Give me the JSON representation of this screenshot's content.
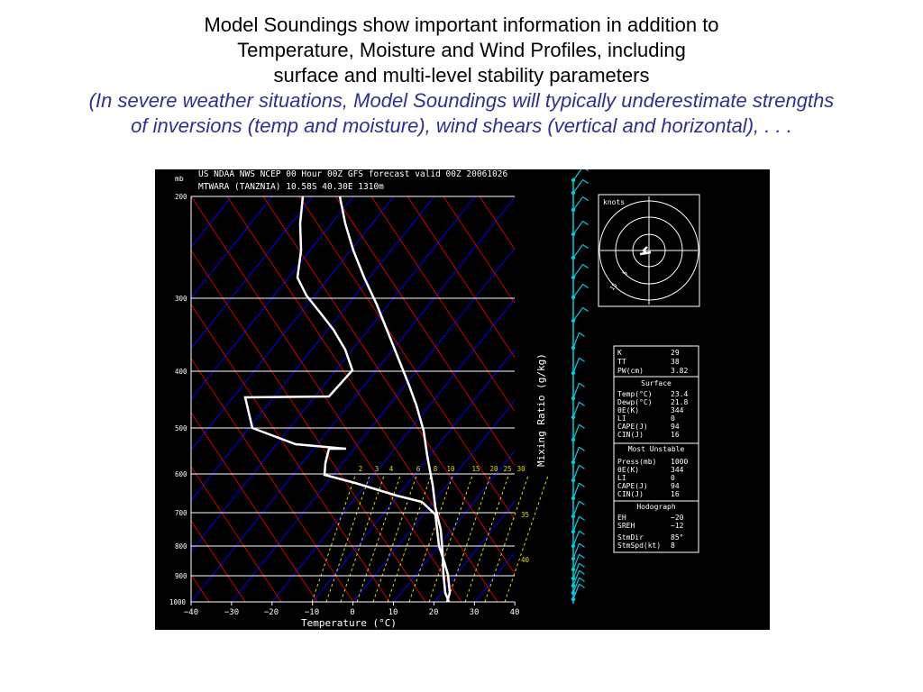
{
  "slide": {
    "title_lines": [
      "Model Soundings show important information in addition to",
      "Temperature, Moisture and Wind Profiles, including",
      "surface and multi-level stability parameters"
    ],
    "note_lines": [
      "(In severe weather situations, Model Soundings will typically underestimate strengths",
      "of inversions (temp and moisture), wind shears (vertical and horizontal), . . ."
    ]
  },
  "sounding": {
    "header_line1": "US NDAA NWS NCEP 00 Hour 00Z GFS forecast valid 00Z 20061026",
    "header_line2": "MTWARA (TANZNIA) 10.58S 40.30E 1310m",
    "pressure_unit": "mb",
    "pressure_ticks": [
      "200",
      "300",
      "400",
      "500",
      "600",
      "700",
      "800",
      "900",
      "1000"
    ],
    "temp_ticks": [
      "−40",
      "−30",
      "−20",
      "−10",
      "0",
      "10",
      "20",
      "30",
      "40"
    ],
    "x_axis_label": "Temperature (°C)",
    "mixing_ratio_label": "Mixing Ratio (g/kg)",
    "mixing_ratio_values": [
      "2",
      "3",
      "4",
      "6",
      "8",
      "10",
      "15",
      "20",
      "25",
      "30"
    ],
    "theta_labels": [
      "35",
      "40"
    ],
    "hodograph_unit": "knots",
    "hodograph_marks": [
      "5",
      "15"
    ],
    "colors": {
      "background": "#000000",
      "isobar": "#ffffff",
      "isotherm": "#0000ff",
      "dry_adiabat": "#cc0000",
      "mixing_ratio": "#dddd00",
      "profile": "#ffffff",
      "wind": "#00ccdd",
      "title_note": "#2e3192"
    }
  },
  "stability": {
    "top": [
      {
        "label": "K",
        "value": "29"
      },
      {
        "label": "TT",
        "value": "38"
      },
      {
        "label": "PW(cm)",
        "value": "3.82"
      }
    ],
    "surface_title": "Surface",
    "surface": [
      {
        "label": "Temp(°C)",
        "value": "23.4"
      },
      {
        "label": "Dewp(°C)",
        "value": "21.8"
      },
      {
        "label": "θE(K)",
        "value": "344"
      },
      {
        "label": "LI",
        "value": "0"
      },
      {
        "label": "CAPE(J)",
        "value": "94"
      },
      {
        "label": "CIN(J)",
        "value": "16"
      }
    ],
    "unstable_title": "Most Unstable",
    "unstable": [
      {
        "label": "Press(mb)",
        "value": "1000"
      },
      {
        "label": "θE(K)",
        "value": "344"
      },
      {
        "label": "LI",
        "value": "0"
      },
      {
        "label": "CAPE(J)",
        "value": "94"
      },
      {
        "label": "CIN(J)",
        "value": "16"
      }
    ],
    "hodo_title": "Hodograph",
    "hodo": [
      {
        "label": "EH",
        "value": "−20"
      },
      {
        "label": "SREH",
        "value": "−12"
      },
      {
        "label": "StmDir",
        "value": "85°"
      },
      {
        "label": "StmSpd(kt)",
        "value": "8"
      }
    ]
  }
}
